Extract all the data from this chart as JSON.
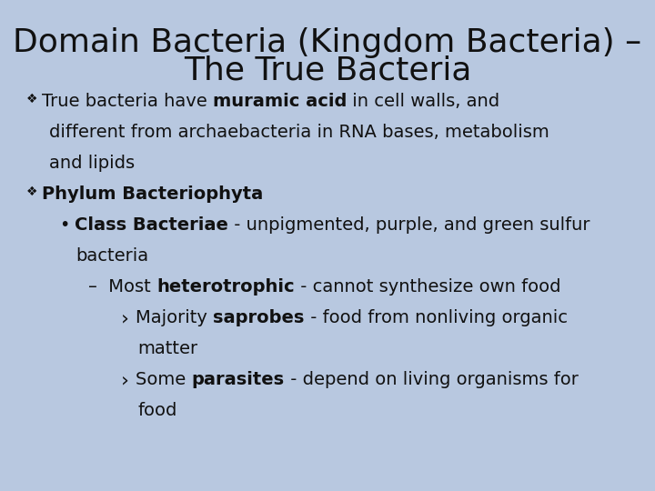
{
  "title_line1": "Domain Bacteria (Kingdom Bacteria) –",
  "title_line2": "The True Bacteria",
  "background_color": "#b8c8e0",
  "title_fontsize": 26,
  "title_color": "#111111",
  "text_color": "#111111",
  "content_fontsize": 14,
  "font_family": "DejaVu Sans",
  "lines": [
    {
      "indent": 0.04,
      "bullet": "❖",
      "bullet_size": 10,
      "segments": [
        {
          "text": "True bacteria have ",
          "bold": false
        },
        {
          "text": "muramic acid",
          "bold": true
        },
        {
          "text": " in cell walls, and",
          "bold": false
        }
      ]
    },
    {
      "indent": 0.075,
      "bullet": "",
      "bullet_size": 14,
      "segments": [
        {
          "text": "different from archaebacteria in RNA bases, metabolism",
          "bold": false
        }
      ]
    },
    {
      "indent": 0.075,
      "bullet": "",
      "bullet_size": 14,
      "segments": [
        {
          "text": "and lipids",
          "bold": false
        }
      ]
    },
    {
      "indent": 0.04,
      "bullet": "❖",
      "bullet_size": 10,
      "segments": [
        {
          "text": "Phylum Bacteriophyta",
          "bold": true
        }
      ]
    },
    {
      "indent": 0.09,
      "bullet": "•",
      "bullet_size": 14,
      "segments": [
        {
          "text": "Class Bacteriae",
          "bold": true
        },
        {
          "text": " - unpigmented, purple, and green sulfur",
          "bold": false
        }
      ]
    },
    {
      "indent": 0.115,
      "bullet": "",
      "bullet_size": 14,
      "segments": [
        {
          "text": "bacteria",
          "bold": false
        }
      ]
    },
    {
      "indent": 0.135,
      "bullet": "–",
      "bullet_size": 14,
      "segments": [
        {
          "text": " Most ",
          "bold": false
        },
        {
          "text": "heterotrophic",
          "bold": true
        },
        {
          "text": " - cannot synthesize own food",
          "bold": false
        }
      ]
    },
    {
      "indent": 0.185,
      "bullet": "›",
      "bullet_size": 16,
      "segments": [
        {
          "text": "Majority ",
          "bold": false
        },
        {
          "text": "saprobes",
          "bold": true
        },
        {
          "text": " - food from nonliving organic",
          "bold": false
        }
      ]
    },
    {
      "indent": 0.21,
      "bullet": "",
      "bullet_size": 14,
      "segments": [
        {
          "text": "matter",
          "bold": false
        }
      ]
    },
    {
      "indent": 0.185,
      "bullet": "›",
      "bullet_size": 16,
      "segments": [
        {
          "text": "Some ",
          "bold": false
        },
        {
          "text": "parasites",
          "bold": true
        },
        {
          "text": " - depend on living organisms for",
          "bold": false
        }
      ]
    },
    {
      "indent": 0.21,
      "bullet": "",
      "bullet_size": 14,
      "segments": [
        {
          "text": "food",
          "bold": false
        }
      ]
    }
  ]
}
